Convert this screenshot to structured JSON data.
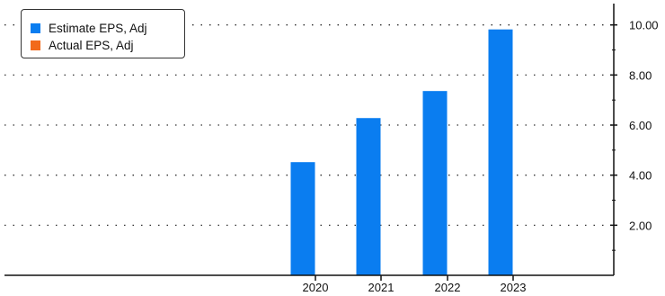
{
  "chart_data": {
    "type": "bar",
    "categories": [
      "2020",
      "2021",
      "2022",
      "2023"
    ],
    "series": [
      {
        "name": "Estimate EPS, Adj",
        "color": "#0a7df0",
        "values": [
          4.52,
          6.28,
          7.36,
          9.82
        ]
      },
      {
        "name": "Actual EPS, Adj",
        "color": "#f26a1b",
        "values": [
          null,
          null,
          null,
          null
        ]
      }
    ],
    "y_ticks": [
      "2.00",
      "4.00",
      "6.00",
      "8.00",
      "10.00"
    ],
    "ylim": [
      0,
      10.6
    ],
    "grid": "dotted-horizontal",
    "y_axis_position": "right",
    "legend_position": "top-left"
  }
}
